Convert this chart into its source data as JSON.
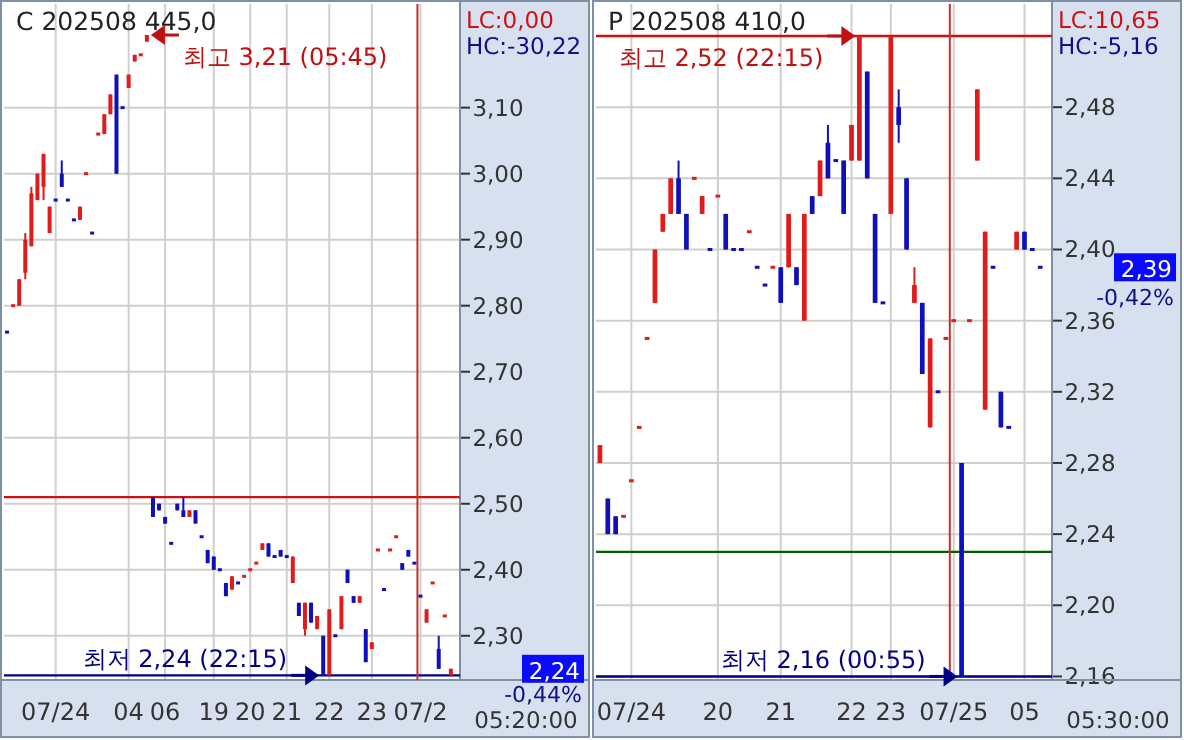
{
  "chart_data": [
    {
      "type": "candlestick",
      "title": "C 202508 445,0",
      "grid": true,
      "categories": [
        null,
        null,
        null,
        null,
        null,
        null,
        null,
        null,
        "07/24",
        null,
        null,
        null,
        null,
        null,
        null,
        null,
        null,
        null,
        null,
        null,
        "04",
        null,
        null,
        null,
        null,
        null,
        "06",
        null,
        null,
        null,
        null,
        null,
        null,
        null,
        "19",
        null,
        null,
        null,
        null,
        null,
        "20",
        null,
        null,
        null,
        null,
        null,
        "21",
        null,
        null,
        null,
        null,
        null,
        null,
        "22",
        null,
        null,
        null,
        null,
        null,
        null,
        "23",
        null,
        null,
        null,
        null,
        null,
        null,
        null,
        "07/2",
        null,
        null,
        null,
        null,
        null
      ],
      "ohlc": [
        [
          2.76,
          2.76,
          2.76,
          2.76
        ],
        [
          2.8,
          2.8,
          2.8,
          2.8
        ],
        [
          2.8,
          2.84,
          2.8,
          2.84
        ],
        [
          2.85,
          2.91,
          2.84,
          2.9
        ],
        [
          2.89,
          2.98,
          2.89,
          2.97
        ],
        [
          2.96,
          3.0,
          2.96,
          3.0
        ],
        [
          2.98,
          3.03,
          2.96,
          3.03
        ],
        [
          2.91,
          2.95,
          2.91,
          2.95
        ],
        [
          2.96,
          2.96,
          2.96,
          2.96
        ],
        [
          3.0,
          3.02,
          2.98,
          2.98
        ],
        [
          2.96,
          2.96,
          2.96,
          2.96
        ],
        [
          2.93,
          2.93,
          2.93,
          2.93
        ],
        [
          2.93,
          2.95,
          2.93,
          2.95
        ],
        [
          3.0,
          3.0,
          3.0,
          3.0
        ],
        [
          2.91,
          2.91,
          2.91,
          2.91
        ],
        [
          3.06,
          3.06,
          3.06,
          3.06
        ],
        [
          3.06,
          3.09,
          3.06,
          3.09
        ],
        [
          3.09,
          3.12,
          3.09,
          3.12
        ],
        [
          3.15,
          3.15,
          3.0,
          3.0
        ],
        [
          3.1,
          3.1,
          3.1,
          3.1
        ],
        [
          3.13,
          3.15,
          3.13,
          3.15
        ],
        [
          3.17,
          3.18,
          3.17,
          3.18
        ],
        [
          3.18,
          3.18,
          3.18,
          3.18
        ],
        [
          3.2,
          3.21,
          3.2,
          3.21
        ],
        [
          2.51,
          2.51,
          2.48,
          2.48
        ],
        [
          2.5,
          2.5,
          2.49,
          2.49
        ],
        [
          2.48,
          2.48,
          2.47,
          2.47
        ],
        [
          2.44,
          2.44,
          2.44,
          2.44
        ],
        [
          2.5,
          2.5,
          2.49,
          2.49
        ],
        [
          2.49,
          2.51,
          2.48,
          2.48
        ],
        [
          2.48,
          2.49,
          2.48,
          2.49
        ],
        [
          2.49,
          2.49,
          2.47,
          2.47
        ],
        [
          2.45,
          2.45,
          2.45,
          2.45
        ],
        [
          2.43,
          2.43,
          2.41,
          2.41
        ],
        [
          2.42,
          2.42,
          2.4,
          2.4
        ],
        [
          2.4,
          2.4,
          2.4,
          2.4
        ],
        [
          2.38,
          2.38,
          2.36,
          2.36
        ],
        [
          2.37,
          2.39,
          2.37,
          2.39
        ],
        [
          2.38,
          2.38,
          2.38,
          2.38
        ],
        [
          2.39,
          2.39,
          2.39,
          2.39
        ],
        [
          2.4,
          2.4,
          2.4,
          2.4
        ],
        [
          2.41,
          2.41,
          2.41,
          2.41
        ],
        [
          2.43,
          2.44,
          2.43,
          2.44
        ],
        [
          2.44,
          2.44,
          2.42,
          2.42
        ],
        [
          2.42,
          2.42,
          2.42,
          2.42
        ],
        [
          2.43,
          2.43,
          2.42,
          2.42
        ],
        [
          2.42,
          2.42,
          2.42,
          2.42
        ],
        [
          2.38,
          2.42,
          2.38,
          2.42
        ],
        [
          2.35,
          2.35,
          2.33,
          2.33
        ],
        [
          2.31,
          2.35,
          2.3,
          2.35
        ],
        [
          2.35,
          2.35,
          2.32,
          2.32
        ],
        [
          2.31,
          2.33,
          2.31,
          2.33
        ],
        [
          2.3,
          2.3,
          2.24,
          2.24
        ],
        [
          2.24,
          2.34,
          2.24,
          2.34
        ],
        [
          2.3,
          2.3,
          2.3,
          2.3
        ],
        [
          2.31,
          2.36,
          2.31,
          2.36
        ],
        [
          2.4,
          2.4,
          2.38,
          2.38
        ],
        [
          2.36,
          2.36,
          2.35,
          2.35
        ],
        [
          2.35,
          2.36,
          2.35,
          2.36
        ],
        [
          2.31,
          2.31,
          2.26,
          2.26
        ],
        [
          2.28,
          2.29,
          2.28,
          2.29
        ],
        [
          2.43,
          2.43,
          2.43,
          2.43
        ],
        [
          2.37,
          2.37,
          2.37,
          2.37
        ],
        [
          2.43,
          2.43,
          2.43,
          2.43
        ],
        [
          2.45,
          2.45,
          2.45,
          2.45
        ],
        [
          2.41,
          2.41,
          2.4,
          2.4
        ],
        [
          2.43,
          2.43,
          2.42,
          2.42
        ],
        [
          2.41,
          2.41,
          2.41,
          2.41
        ],
        [
          2.36,
          2.36,
          2.36,
          2.36
        ],
        [
          2.32,
          2.34,
          2.32,
          2.34
        ],
        [
          2.38,
          2.38,
          2.38,
          2.38
        ],
        [
          2.28,
          2.3,
          2.25,
          2.25
        ],
        [
          2.33,
          2.33,
          2.33,
          2.33
        ],
        [
          2.24,
          2.25,
          2.24,
          2.25
        ]
      ],
      "colors": [
        "#1010b8",
        "#e01b1b",
        "#e01b1b",
        "#e01b1b",
        "#e01b1b",
        "#e01b1b",
        "#e01b1b",
        "#e01b1b",
        "#1010b8",
        "#1010b8",
        "#1010b8",
        "#1010b8",
        "#e01b1b",
        "#e01b1b",
        "#1010b8",
        "#e01b1b",
        "#e01b1b",
        "#e01b1b",
        "#1010b8",
        "#1010b8",
        "#e01b1b",
        "#e01b1b",
        "#e01b1b",
        "#e01b1b",
        "#1010b8",
        "#1010b8",
        "#1010b8",
        "#1010b8",
        "#1010b8",
        "#1010b8",
        "#e01b1b",
        "#1010b8",
        "#1010b8",
        "#1010b8",
        "#1010b8",
        "#1010b8",
        "#1010b8",
        "#e01b1b",
        "#1010b8",
        "#e01b1b",
        "#e01b1b",
        "#e01b1b",
        "#e01b1b",
        "#1010b8",
        "#1010b8",
        "#1010b8",
        "#1010b8",
        "#e01b1b",
        "#1010b8",
        "#e01b1b",
        "#1010b8",
        "#e01b1b",
        "#1010b8",
        "#e01b1b",
        "#1010b8",
        "#e01b1b",
        "#1010b8",
        "#1010b8",
        "#e01b1b",
        "#1010b8",
        "#e01b1b",
        "#e01b1b",
        "#1010b8",
        "#e01b1b",
        "#e01b1b",
        "#1010b8",
        "#1010b8",
        "#1010b8",
        "#1010b8",
        "#e01b1b",
        "#e01b1b",
        "#1010b8",
        "#e01b1b",
        "#e01b1b"
      ],
      "ylim": [
        2.233,
        3.257
      ],
      "yticks": [
        {
          "value": 2.3,
          "label": "2,30"
        },
        {
          "value": 2.4,
          "label": "2,40"
        },
        {
          "value": 2.5,
          "label": "2,50"
        },
        {
          "value": 2.6,
          "label": "2,60"
        },
        {
          "value": 2.7,
          "label": "2,70"
        },
        {
          "value": 2.8,
          "label": "2,80"
        },
        {
          "value": 2.9,
          "label": "2,90"
        },
        {
          "value": 3.0,
          "label": "3,00"
        },
        {
          "value": 3.1,
          "label": "3,10"
        }
      ],
      "ref_lines": [
        {
          "axis": "y",
          "value": 2.51,
          "color": "#d01010"
        },
        {
          "axis": "y",
          "value": 2.24,
          "color": "#000080"
        },
        {
          "axis": "x",
          "value": "07/2",
          "color": "#c03030"
        }
      ],
      "annotations": [
        "최고 3,21 (05:45)",
        "최저 2,24 (22:15)",
        "LC:0,00",
        "HC:-30,22",
        "2,24",
        "-0,44%",
        "05:20:00"
      ]
    },
    {
      "type": "candlestick",
      "title": "P 202508 410,0",
      "grid": true,
      "categories": [
        null,
        null,
        null,
        null,
        "07/24",
        null,
        null,
        null,
        null,
        null,
        null,
        null,
        null,
        null,
        null,
        "20",
        null,
        null,
        null,
        null,
        null,
        null,
        null,
        "21",
        null,
        null,
        null,
        null,
        null,
        null,
        null,
        null,
        "22",
        null,
        null,
        null,
        null,
        "23",
        null,
        null,
        null,
        null,
        null,
        null,
        null,
        "07/25",
        null,
        null,
        null,
        null,
        null,
        null,
        null,
        null,
        "05",
        null,
        null
      ],
      "ohlc": [
        [
          2.28,
          2.29,
          2.28,
          2.29
        ],
        [
          2.26,
          2.26,
          2.24,
          2.24
        ],
        [
          2.25,
          2.25,
          2.24,
          2.24
        ],
        [
          2.25,
          2.25,
          2.25,
          2.25
        ],
        [
          2.27,
          2.27,
          2.27,
          2.27
        ],
        [
          2.3,
          2.3,
          2.3,
          2.3
        ],
        [
          2.35,
          2.35,
          2.35,
          2.35
        ],
        [
          2.37,
          2.4,
          2.37,
          2.4
        ],
        [
          2.41,
          2.42,
          2.41,
          2.42
        ],
        [
          2.42,
          2.44,
          2.42,
          2.44
        ],
        [
          2.44,
          2.45,
          2.42,
          2.42
        ],
        [
          2.42,
          2.42,
          2.4,
          2.4
        ],
        [
          2.44,
          2.44,
          2.44,
          2.44
        ],
        [
          2.42,
          2.43,
          2.42,
          2.43
        ],
        [
          2.4,
          2.4,
          2.4,
          2.4
        ],
        [
          2.43,
          2.43,
          2.43,
          2.43
        ],
        [
          2.42,
          2.42,
          2.4,
          2.4
        ],
        [
          2.4,
          2.4,
          2.4,
          2.4
        ],
        [
          2.4,
          2.4,
          2.4,
          2.4
        ],
        [
          2.41,
          2.41,
          2.41,
          2.41
        ],
        [
          2.39,
          2.39,
          2.39,
          2.39
        ],
        [
          2.38,
          2.38,
          2.38,
          2.38
        ],
        [
          2.39,
          2.39,
          2.39,
          2.39
        ],
        [
          2.39,
          2.39,
          2.37,
          2.37
        ],
        [
          2.39,
          2.42,
          2.39,
          2.42
        ],
        [
          2.39,
          2.39,
          2.38,
          2.38
        ],
        [
          2.36,
          2.42,
          2.36,
          2.42
        ],
        [
          2.43,
          2.43,
          2.42,
          2.42
        ],
        [
          2.43,
          2.45,
          2.43,
          2.45
        ],
        [
          2.46,
          2.47,
          2.44,
          2.44
        ],
        [
          2.45,
          2.45,
          2.45,
          2.45
        ],
        [
          2.45,
          2.45,
          2.42,
          2.42
        ],
        [
          2.45,
          2.47,
          2.45,
          2.47
        ],
        [
          2.45,
          2.52,
          2.45,
          2.52
        ],
        [
          2.5,
          2.5,
          2.44,
          2.44
        ],
        [
          2.42,
          2.42,
          2.37,
          2.37
        ],
        [
          2.37,
          2.37,
          2.37,
          2.37
        ],
        [
          2.42,
          2.52,
          2.42,
          2.52
        ],
        [
          2.48,
          2.49,
          2.46,
          2.47
        ],
        [
          2.44,
          2.44,
          2.4,
          2.4
        ],
        [
          2.37,
          2.39,
          2.37,
          2.38
        ],
        [
          2.37,
          2.37,
          2.33,
          2.33
        ],
        [
          2.3,
          2.35,
          2.3,
          2.35
        ],
        [
          2.32,
          2.32,
          2.32,
          2.32
        ],
        [
          2.35,
          2.35,
          2.35,
          2.35
        ],
        [
          2.36,
          2.36,
          2.36,
          2.36
        ],
        [
          2.28,
          2.28,
          2.16,
          2.16
        ],
        [
          2.36,
          2.36,
          2.36,
          2.36
        ],
        [
          2.45,
          2.49,
          2.45,
          2.49
        ],
        [
          2.31,
          2.41,
          2.31,
          2.41
        ],
        [
          2.39,
          2.39,
          2.39,
          2.39
        ],
        [
          2.32,
          2.32,
          2.3,
          2.3
        ],
        [
          2.3,
          2.3,
          2.3,
          2.3
        ],
        [
          2.4,
          2.41,
          2.4,
          2.41
        ],
        [
          2.41,
          2.41,
          2.4,
          2.4
        ],
        [
          2.4,
          2.4,
          2.4,
          2.4
        ],
        [
          2.39,
          2.39,
          2.39,
          2.39
        ]
      ],
      "colors": [
        "#e01b1b",
        "#1010b8",
        "#1010b8",
        "#e01b1b",
        "#e01b1b",
        "#e01b1b",
        "#e01b1b",
        "#e01b1b",
        "#e01b1b",
        "#e01b1b",
        "#1010b8",
        "#1010b8",
        "#e01b1b",
        "#e01b1b",
        "#1010b8",
        "#e01b1b",
        "#1010b8",
        "#1010b8",
        "#1010b8",
        "#e01b1b",
        "#1010b8",
        "#1010b8",
        "#e01b1b",
        "#1010b8",
        "#e01b1b",
        "#1010b8",
        "#e01b1b",
        "#1010b8",
        "#e01b1b",
        "#1010b8",
        "#1010b8",
        "#1010b8",
        "#e01b1b",
        "#e01b1b",
        "#1010b8",
        "#1010b8",
        "#1010b8",
        "#e01b1b",
        "#1010b8",
        "#1010b8",
        "#e01b1b",
        "#1010b8",
        "#e01b1b",
        "#1010b8",
        "#e01b1b",
        "#e01b1b",
        "#1010b8",
        "#e01b1b",
        "#e01b1b",
        "#e01b1b",
        "#1010b8",
        "#1010b8",
        "#1010b8",
        "#e01b1b",
        "#1010b8",
        "#1010b8",
        "#1010b8"
      ],
      "ylim": [
        2.158,
        2.538
      ],
      "yticks": [
        {
          "value": 2.16,
          "label": "2,16"
        },
        {
          "value": 2.2,
          "label": "2,20"
        },
        {
          "value": 2.24,
          "label": "2,24"
        },
        {
          "value": 2.28,
          "label": "2,28"
        },
        {
          "value": 2.32,
          "label": "2,32"
        },
        {
          "value": 2.36,
          "label": "2,36"
        },
        {
          "value": 2.4,
          "label": "2,40"
        },
        {
          "value": 2.44,
          "label": "2,44"
        },
        {
          "value": 2.48,
          "label": "2,48"
        }
      ],
      "ref_lines": [
        {
          "axis": "y",
          "value": 2.52,
          "color": "#d01010"
        },
        {
          "axis": "y",
          "value": 2.23,
          "color": "#006000"
        },
        {
          "axis": "y",
          "value": 2.16,
          "color": "#000080"
        },
        {
          "axis": "x",
          "value": "07/25",
          "color": "#c03030"
        }
      ],
      "annotations": [
        "최고 2,52 (22:15)",
        "최저 2,16 (00:55)",
        "LC:10,65",
        "HC:-5,16",
        "2,39",
        "-0,42%",
        "05:30:00"
      ]
    }
  ]
}
